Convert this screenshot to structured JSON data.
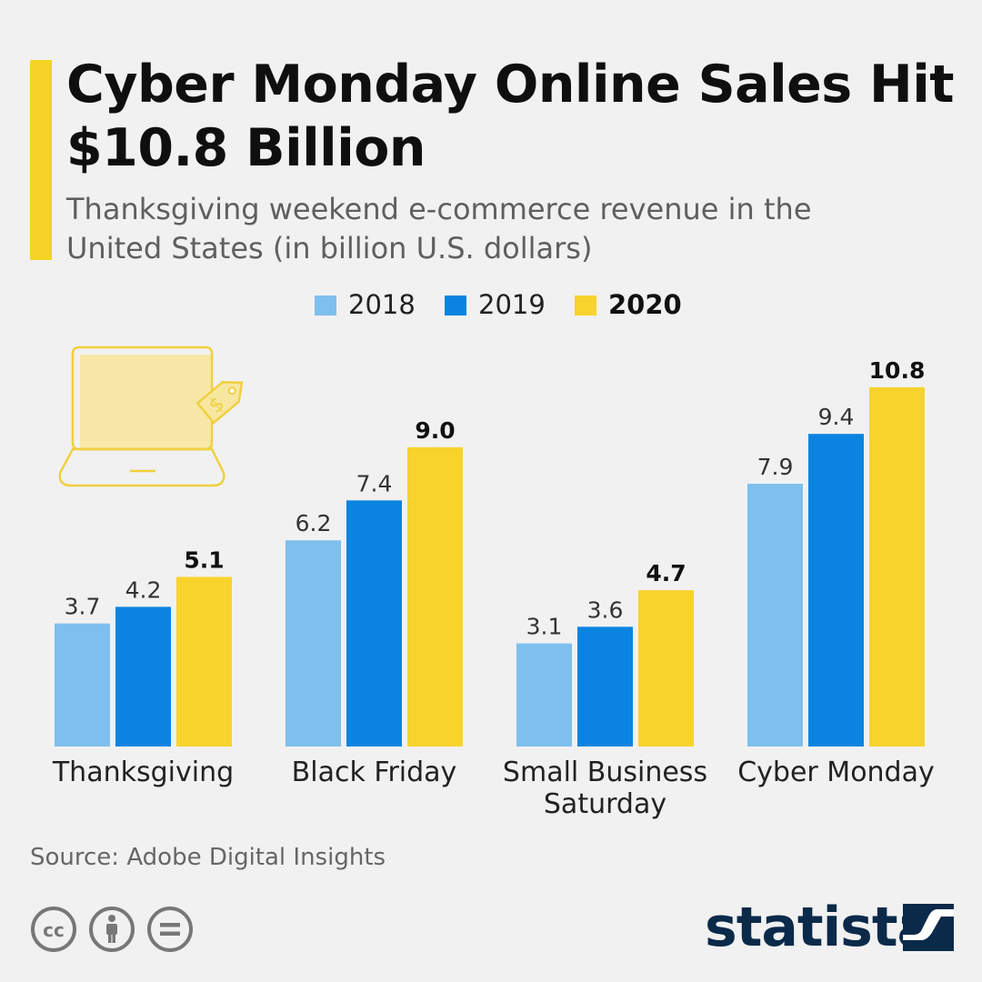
{
  "header": {
    "title": "Cyber Monday Online Sales Hit $10.8 Billion",
    "subtitle": "Thanksgiving weekend e-commerce revenue in the United States (in billion U.S. dollars)"
  },
  "colors": {
    "accent": "#f5d327",
    "series_2018": "#7fbfee",
    "series_2019": "#0a84e0",
    "series_2020": "#f7d32c",
    "brand": "#0b2a4a"
  },
  "icons": {
    "illustration": "laptop-with-price-tag-icon",
    "license": [
      "creative-commons-icon",
      "attribution-icon",
      "no-derivatives-icon"
    ],
    "brand_mark": "statista-logo-icon"
  },
  "chart_data": {
    "type": "bar",
    "categories": [
      "Thanksgiving",
      "Black Friday",
      "Small Business Saturday",
      "Cyber Monday"
    ],
    "series": [
      {
        "name": "2018",
        "values": [
          3.7,
          6.2,
          3.1,
          7.9
        ]
      },
      {
        "name": "2019",
        "values": [
          4.2,
          7.4,
          3.6,
          9.4
        ]
      },
      {
        "name": "2020",
        "values": [
          5.1,
          9.0,
          4.7,
          10.8
        ]
      }
    ],
    "value_labels": {
      "2018": [
        "3.7",
        "6.2",
        "3.1",
        "7.9"
      ],
      "2019": [
        "4.2",
        "7.4",
        "3.6",
        "9.4"
      ],
      "2020": [
        "5.1",
        "9.0",
        "4.7",
        "10.8"
      ]
    },
    "highlight_series": "2020",
    "title": "Cyber Monday Online Sales Hit $10.8 Billion",
    "subtitle": "Thanksgiving weekend e-commerce revenue in the United States (in billion U.S. dollars)",
    "legend": [
      "2018",
      "2019",
      "2020"
    ],
    "legend_position": "top-center",
    "ylim": [
      0,
      10.8
    ],
    "grid": false
  },
  "footer": {
    "source": "Source: Adobe Digital Insights",
    "brand": "statista"
  }
}
